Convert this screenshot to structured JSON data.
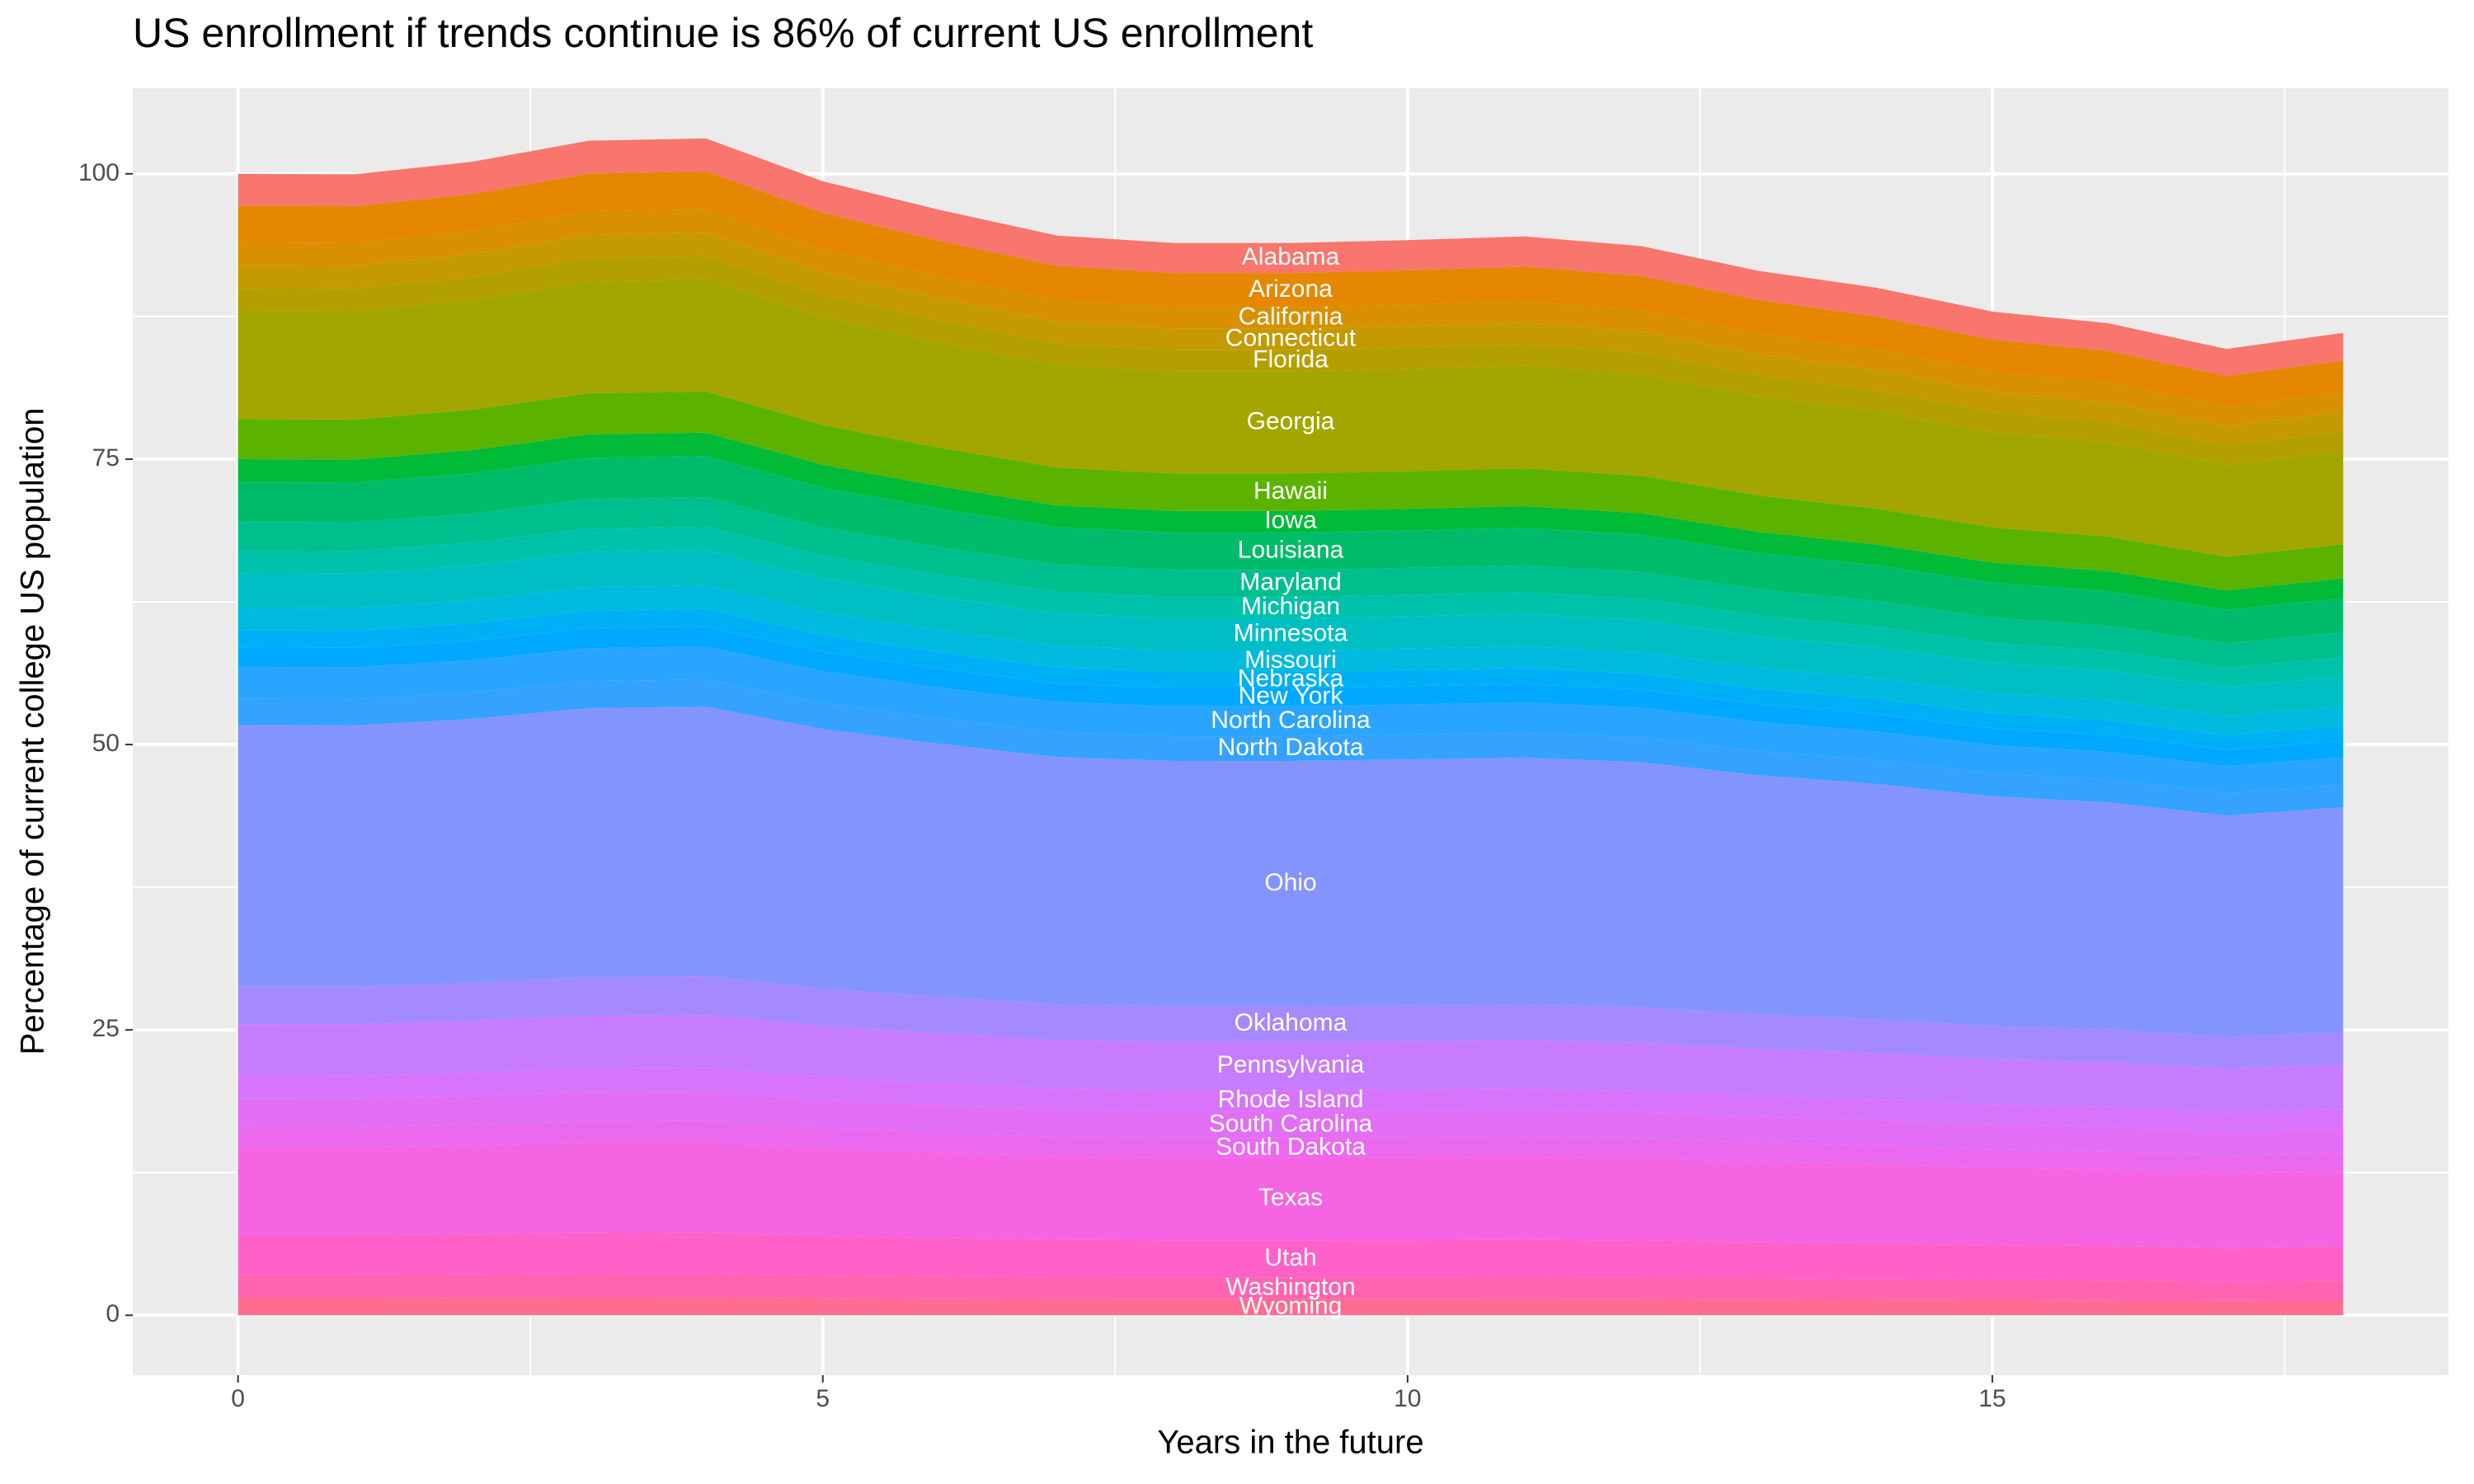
{
  "chart_data": {
    "type": "stacked_area",
    "title": "US enrollment if trends continue is 86% of current US enrollment",
    "x_label": "Years in the future",
    "y_label": "Percentage of current college US population",
    "x": [
      0,
      1,
      2,
      3,
      4,
      5,
      6,
      7,
      8,
      9,
      10,
      11,
      12,
      13,
      14,
      15,
      16,
      17,
      18
    ],
    "xlim": [
      -0.9,
      18.9
    ],
    "xticks": [
      0,
      5,
      10,
      15
    ],
    "x_minor_ticks": [
      2.5,
      7.5,
      12.5,
      17.5
    ],
    "ylim": [
      -5.25,
      107.5
    ],
    "yticks": [
      0,
      25,
      50,
      75,
      100
    ],
    "y_minor_ticks": [
      12.5,
      37.5,
      62.5,
      87.5
    ],
    "grid": true,
    "series": [
      {
        "name": "Wyoming",
        "color": "#FF6C91",
        "values": [
          1.5,
          1.5,
          1.52,
          1.54,
          1.55,
          1.49,
          1.45,
          1.42,
          1.41,
          1.41,
          1.41,
          1.42,
          1.41,
          1.37,
          1.35,
          1.32,
          1.3,
          1.27,
          1.29
        ]
      },
      {
        "name": "Washington",
        "color": "#FF64B0",
        "values": [
          2,
          2.0,
          2.02,
          2.06,
          2.06,
          1.99,
          1.94,
          1.89,
          1.88,
          1.88,
          1.88,
          1.89,
          1.87,
          1.83,
          1.8,
          1.76,
          1.74,
          1.69,
          1.72
        ]
      },
      {
        "name": "Utah",
        "color": "#FF61C9",
        "values": [
          3.5,
          3.5,
          3.54,
          3.6,
          3.61,
          3.48,
          3.39,
          3.31,
          3.29,
          3.29,
          3.3,
          3.31,
          3.28,
          3.2,
          3.15,
          3.08,
          3.04,
          2.96,
          3.01
        ]
      },
      {
        "name": "Texas",
        "color": "#F564E3",
        "values": [
          7.7,
          7.69,
          7.78,
          7.92,
          7.94,
          7.65,
          7.45,
          7.28,
          7.23,
          7.23,
          7.25,
          7.28,
          7.21,
          7.05,
          6.94,
          6.77,
          6.69,
          6.52,
          6.63
        ]
      },
      {
        "name": "South Dakota",
        "color": "#EB69EE",
        "values": [
          1.8,
          1.8,
          1.82,
          1.85,
          1.86,
          1.79,
          1.74,
          1.7,
          1.69,
          1.69,
          1.7,
          1.7,
          1.69,
          1.65,
          1.62,
          1.58,
          1.56,
          1.52,
          1.55
        ]
      },
      {
        "name": "South Carolina",
        "color": "#E36EF6",
        "values": [
          2.5,
          2.5,
          2.53,
          2.57,
          2.58,
          2.48,
          2.42,
          2.37,
          2.35,
          2.35,
          2.36,
          2.36,
          2.34,
          2.29,
          2.25,
          2.2,
          2.17,
          2.12,
          2.15
        ]
      },
      {
        "name": "Rhode Island",
        "color": "#D874FC",
        "values": [
          2,
          2.0,
          2.02,
          2.06,
          2.06,
          1.99,
          1.94,
          1.89,
          1.88,
          1.88,
          1.88,
          1.89,
          1.87,
          1.83,
          1.8,
          1.76,
          1.74,
          1.69,
          1.72
        ]
      },
      {
        "name": "Pennsylvania",
        "color": "#C77CFF",
        "values": [
          4.5,
          4.5,
          4.55,
          4.63,
          4.64,
          4.47,
          4.36,
          4.26,
          4.23,
          4.23,
          4.24,
          4.25,
          4.22,
          4.12,
          4.05,
          3.96,
          3.91,
          3.81,
          3.87
        ]
      },
      {
        "name": "Oklahoma",
        "color": "#A58AFF",
        "values": [
          3.3,
          3.3,
          3.33,
          3.4,
          3.4,
          3.28,
          3.19,
          3.12,
          3.1,
          3.1,
          3.11,
          3.12,
          3.09,
          3.02,
          2.97,
          2.9,
          2.87,
          2.8,
          2.84
        ]
      },
      {
        "name": "Ohio",
        "color": "#8494FF",
        "values": [
          22.9,
          22.88,
          23.13,
          23.56,
          23.61,
          22.74,
          22.17,
          21.66,
          21.5,
          21.5,
          21.57,
          21.64,
          21.46,
          20.95,
          20.63,
          20.13,
          19.9,
          19.4,
          19.72
        ]
      },
      {
        "name": "North Dakota",
        "color": "#35A2FF",
        "values": [
          2.3,
          2.3,
          2.32,
          2.37,
          2.37,
          2.28,
          2.23,
          2.18,
          2.16,
          2.16,
          2.17,
          2.17,
          2.16,
          2.1,
          2.07,
          2.02,
          2.0,
          1.95,
          1.98
        ]
      },
      {
        "name": "North Carolina",
        "color": "#2AA5FF",
        "values": [
          2.8,
          2.8,
          2.83,
          2.88,
          2.89,
          2.78,
          2.71,
          2.65,
          2.63,
          2.63,
          2.64,
          2.65,
          2.62,
          2.56,
          2.52,
          2.46,
          2.43,
          2.37,
          2.41
        ]
      },
      {
        "name": "New York",
        "color": "#00A9FF",
        "values": [
          1.7,
          1.7,
          1.72,
          1.75,
          1.75,
          1.69,
          1.65,
          1.61,
          1.6,
          1.6,
          1.6,
          1.61,
          1.59,
          1.56,
          1.53,
          1.49,
          1.48,
          1.44,
          1.46
        ]
      },
      {
        "name": "Nebraska",
        "color": "#00B0F6",
        "values": [
          1.5,
          1.5,
          1.52,
          1.54,
          1.55,
          1.49,
          1.45,
          1.42,
          1.41,
          1.41,
          1.41,
          1.42,
          1.41,
          1.37,
          1.35,
          1.32,
          1.3,
          1.27,
          1.29
        ]
      },
      {
        "name": "Missouri",
        "color": "#00BAE0",
        "values": [
          2,
          2.0,
          2.02,
          2.06,
          2.06,
          1.99,
          1.94,
          1.89,
          1.88,
          1.88,
          1.88,
          1.89,
          1.87,
          1.83,
          1.8,
          1.76,
          1.74,
          1.69,
          1.72
        ]
      },
      {
        "name": "Minnesota",
        "color": "#00BFC4",
        "values": [
          3,
          3.0,
          3.03,
          3.09,
          3.09,
          2.98,
          2.9,
          2.84,
          2.82,
          2.82,
          2.83,
          2.84,
          2.81,
          2.75,
          2.7,
          2.64,
          2.61,
          2.54,
          2.58
        ]
      },
      {
        "name": "Michigan",
        "color": "#00C1AA",
        "values": [
          2,
          2.0,
          2.02,
          2.06,
          2.06,
          1.99,
          1.94,
          1.89,
          1.88,
          1.88,
          1.88,
          1.89,
          1.87,
          1.83,
          1.8,
          1.76,
          1.74,
          1.69,
          1.72
        ]
      },
      {
        "name": "Maryland",
        "color": "#00BF8E",
        "values": [
          2.5,
          2.5,
          2.53,
          2.57,
          2.58,
          2.48,
          2.42,
          2.37,
          2.35,
          2.35,
          2.36,
          2.36,
          2.34,
          2.29,
          2.25,
          2.2,
          2.17,
          2.12,
          2.15
        ]
      },
      {
        "name": "Louisiana",
        "color": "#00BC6A",
        "values": [
          3.5,
          3.5,
          3.54,
          3.6,
          3.61,
          3.48,
          3.39,
          3.31,
          3.29,
          3.29,
          3.3,
          3.31,
          3.28,
          3.2,
          3.15,
          3.08,
          3.04,
          2.96,
          3.01
        ]
      },
      {
        "name": "Iowa",
        "color": "#00BA38",
        "values": [
          2,
          2.0,
          2.02,
          2.06,
          2.06,
          1.99,
          1.94,
          1.89,
          1.88,
          1.88,
          1.88,
          1.89,
          1.87,
          1.83,
          1.8,
          1.76,
          1.74,
          1.69,
          1.72
        ]
      },
      {
        "name": "Hawaii",
        "color": "#5BB300",
        "values": [
          3.5,
          3.5,
          3.54,
          3.6,
          3.61,
          3.48,
          3.39,
          3.31,
          3.29,
          3.29,
          3.3,
          3.31,
          3.28,
          3.2,
          3.15,
          3.08,
          3.04,
          2.96,
          3.01
        ]
      },
      {
        "name": "Georgia",
        "color": "#A3A500",
        "values": [
          9.5,
          9.49,
          9.6,
          9.78,
          9.79,
          9.43,
          9.2,
          8.99,
          8.92,
          8.92,
          8.95,
          8.98,
          8.9,
          8.69,
          8.56,
          8.35,
          8.26,
          8.05,
          8.18
        ]
      },
      {
        "name": "Florida",
        "color": "#B49F00",
        "values": [
          2,
          2.0,
          2.02,
          2.06,
          2.06,
          1.99,
          1.94,
          1.89,
          1.88,
          1.88,
          1.88,
          1.89,
          1.87,
          1.83,
          1.8,
          1.76,
          1.74,
          1.69,
          1.72
        ]
      },
      {
        "name": "Connecticut",
        "color": "#C49A00",
        "values": [
          2,
          2.0,
          2.02,
          2.06,
          2.06,
          1.99,
          1.94,
          1.89,
          1.88,
          1.88,
          1.88,
          1.89,
          1.87,
          1.83,
          1.8,
          1.76,
          1.74,
          1.69,
          1.72
        ]
      },
      {
        "name": "California",
        "color": "#D89000",
        "values": [
          2,
          2.0,
          2.02,
          2.06,
          2.06,
          1.99,
          1.94,
          1.89,
          1.88,
          1.88,
          1.88,
          1.89,
          1.87,
          1.83,
          1.8,
          1.76,
          1.74,
          1.69,
          1.72
        ]
      },
      {
        "name": "Arizona",
        "color": "#E58700",
        "values": [
          3.2,
          3.2,
          3.23,
          3.29,
          3.3,
          3.18,
          3.1,
          3.03,
          3.0,
          3.0,
          3.01,
          3.02,
          3.0,
          2.93,
          2.88,
          2.81,
          2.78,
          2.71,
          2.76
        ]
      },
      {
        "name": "Alabama",
        "color": "#F8766D",
        "values": [
          2.8,
          2.8,
          2.83,
          2.88,
          2.89,
          2.78,
          2.71,
          2.65,
          2.63,
          2.63,
          2.64,
          2.65,
          2.62,
          2.56,
          2.52,
          2.46,
          2.43,
          2.37,
          2.41
        ]
      }
    ]
  }
}
